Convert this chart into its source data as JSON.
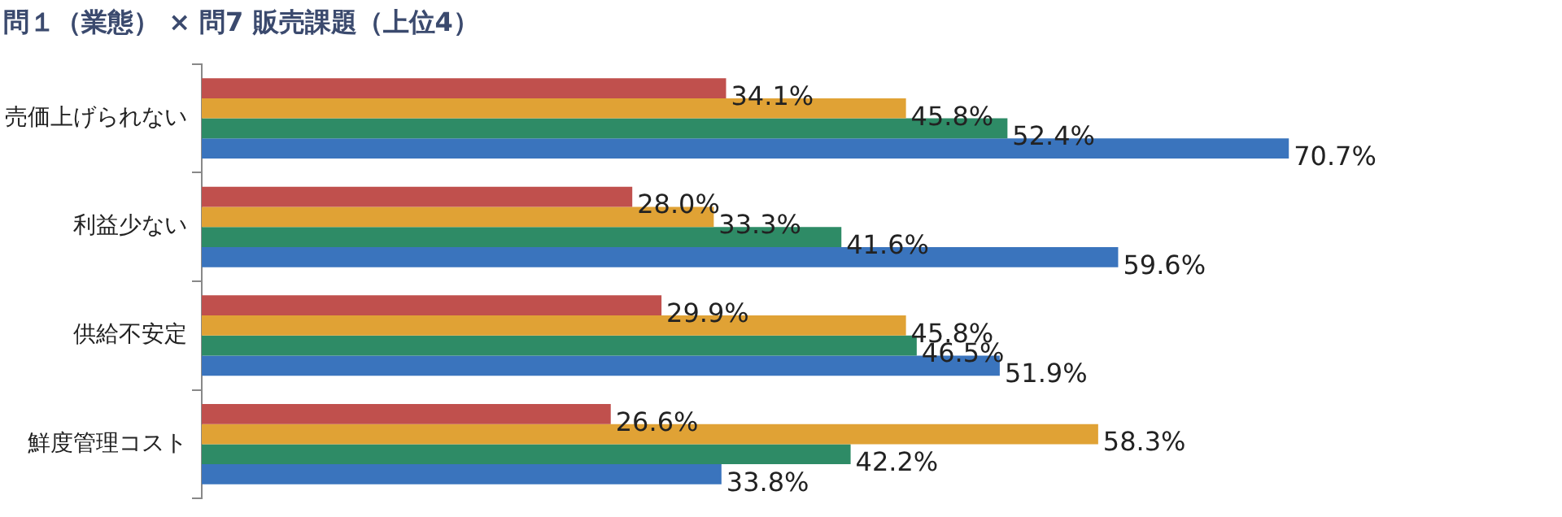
{
  "chart_data": {
    "type": "bar",
    "orientation": "horizontal",
    "title": "問１（業態） × 問7 販売課題（上位4）",
    "categories": [
      "売価上げられない",
      "利益少ない",
      "供給不安定",
      "鮮度管理コスト"
    ],
    "series": [
      {
        "color": "#c0504d",
        "values": [
          34.1,
          28.0,
          29.9,
          26.6
        ],
        "value_labels": [
          "34.1%",
          "28.0%",
          "29.9%",
          "26.6%"
        ]
      },
      {
        "color": "#e0a235",
        "values": [
          45.8,
          33.3,
          45.8,
          58.3
        ],
        "value_labels": [
          "45.8%",
          "33.3%",
          "45.8%",
          "58.3%"
        ]
      },
      {
        "color": "#2e8b66",
        "values": [
          52.4,
          41.6,
          46.5,
          42.2
        ],
        "value_labels": [
          "52.4%",
          "41.6%",
          "46.5%",
          "42.2%"
        ]
      },
      {
        "color": "#3a74bd",
        "values": [
          70.7,
          59.6,
          51.9,
          33.8
        ],
        "value_labels": [
          "70.7%",
          "59.6%",
          "51.9%",
          "33.8%"
        ]
      }
    ],
    "legend": false,
    "grid": false,
    "tick_labels": "y"
  }
}
